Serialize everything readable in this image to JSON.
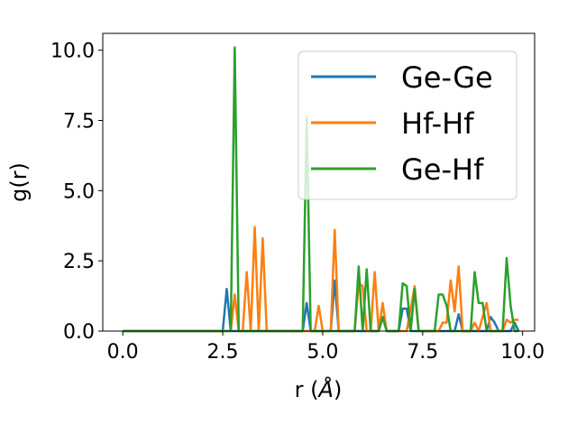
{
  "chart_data": {
    "type": "line",
    "xlabel": "r (Å)",
    "ylabel": "g(r)",
    "xlim": [
      -0.5,
      10.3
    ],
    "ylim": [
      0,
      10.6
    ],
    "xticks": [
      0.0,
      2.5,
      5.0,
      7.5,
      10.0
    ],
    "xtick_labels": [
      "0.0",
      "2.5",
      "5.0",
      "7.5",
      "10.0"
    ],
    "yticks": [
      0.0,
      2.5,
      5.0,
      7.5,
      10.0
    ],
    "ytick_labels": [
      "0.0",
      "2.5",
      "5.0",
      "7.5",
      "10.0"
    ],
    "grid": false,
    "legend_position": "upper right",
    "series": [
      {
        "name": "Ge-Ge",
        "color": "#1f77b4",
        "x": [
          0.0,
          2.5,
          2.6,
          2.7,
          2.8,
          4.5,
          4.6,
          4.7,
          5.2,
          5.3,
          5.4,
          6.4,
          6.5,
          6.6,
          6.9,
          7.0,
          7.1,
          7.2,
          7.3,
          8.3,
          8.4,
          8.5,
          9.1,
          9.2,
          9.3,
          9.4,
          9.7,
          9.8,
          9.9
        ],
        "y": [
          0.0,
          0.0,
          1.5,
          0.0,
          0.0,
          0.0,
          1.0,
          0.0,
          0.0,
          1.8,
          0.0,
          0.0,
          0.5,
          0.0,
          0.0,
          0.8,
          0.8,
          0.0,
          0.0,
          0.0,
          0.6,
          0.0,
          0.0,
          0.5,
          0.3,
          0.0,
          0.0,
          0.3,
          0.0
        ]
      },
      {
        "name": "Hf-Hf",
        "color": "#ff7f0e",
        "x": [
          0.0,
          2.6,
          2.7,
          2.8,
          2.9,
          3.0,
          3.1,
          3.2,
          3.3,
          3.4,
          3.5,
          3.6,
          3.7,
          4.5,
          4.6,
          4.7,
          4.8,
          4.9,
          5.0,
          5.1,
          5.2,
          5.3,
          5.4,
          5.5,
          5.6,
          5.8,
          5.9,
          6.0,
          6.1,
          6.2,
          6.3,
          6.4,
          6.5,
          6.6,
          6.7,
          6.8,
          6.9,
          7.0,
          7.1,
          7.2,
          7.3,
          7.4,
          7.5,
          7.8,
          7.9,
          8.0,
          8.1,
          8.2,
          8.3,
          8.4,
          8.5,
          8.6,
          8.7,
          8.8,
          8.9,
          9.0,
          9.1,
          9.2,
          9.3,
          9.4,
          9.5,
          9.6,
          9.7,
          9.8,
          9.9
        ],
        "y": [
          0.0,
          0.0,
          0.0,
          1.3,
          0.0,
          0.0,
          2.1,
          0.0,
          3.7,
          0.0,
          3.3,
          0.0,
          0.0,
          0.0,
          0.0,
          0.0,
          0.0,
          0.9,
          0.0,
          0.0,
          0.0,
          3.6,
          0.0,
          0.0,
          0.0,
          0.0,
          1.7,
          1.6,
          0.0,
          0.0,
          2.1,
          0.0,
          1.0,
          0.0,
          0.0,
          0.0,
          0.0,
          0.0,
          0.0,
          0.8,
          1.6,
          0.0,
          0.0,
          0.0,
          0.0,
          0.3,
          0.3,
          1.8,
          0.7,
          2.3,
          0.0,
          0.0,
          0.0,
          0.3,
          0.0,
          0.5,
          1.0,
          0.0,
          0.0,
          0.0,
          0.0,
          0.4,
          0.3,
          0.4,
          0.4
        ]
      },
      {
        "name": "Ge-Hf",
        "color": "#2ca02c",
        "x": [
          0.0,
          2.6,
          2.7,
          2.8,
          2.9,
          3.0,
          4.4,
          4.5,
          4.6,
          4.7,
          4.8,
          5.7,
          5.8,
          5.9,
          6.0,
          6.1,
          6.2,
          6.3,
          6.4,
          6.5,
          6.6,
          6.7,
          6.8,
          6.9,
          7.0,
          7.1,
          7.2,
          7.3,
          7.4,
          7.5,
          7.6,
          7.7,
          7.8,
          7.9,
          8.0,
          8.1,
          8.2,
          8.3,
          8.4,
          8.5,
          8.6,
          8.7,
          8.8,
          8.9,
          9.0,
          9.1,
          9.2,
          9.3,
          9.4,
          9.5,
          9.6,
          9.7,
          9.8,
          9.9
        ],
        "y": [
          0.0,
          0.0,
          0.0,
          10.1,
          0.0,
          0.0,
          0.0,
          0.0,
          7.6,
          0.0,
          0.0,
          0.0,
          0.0,
          2.3,
          0.0,
          2.2,
          0.0,
          0.0,
          0.0,
          0.5,
          0.0,
          0.0,
          0.0,
          0.0,
          1.7,
          1.6,
          0.0,
          1.5,
          0.0,
          0.0,
          0.0,
          0.0,
          0.0,
          1.3,
          1.3,
          0.9,
          0.0,
          0.0,
          0.0,
          0.0,
          0.0,
          0.0,
          2.1,
          1.0,
          1.0,
          0.0,
          0.0,
          0.0,
          0.0,
          0.0,
          2.6,
          0.9,
          0.0,
          0.0
        ]
      }
    ]
  }
}
